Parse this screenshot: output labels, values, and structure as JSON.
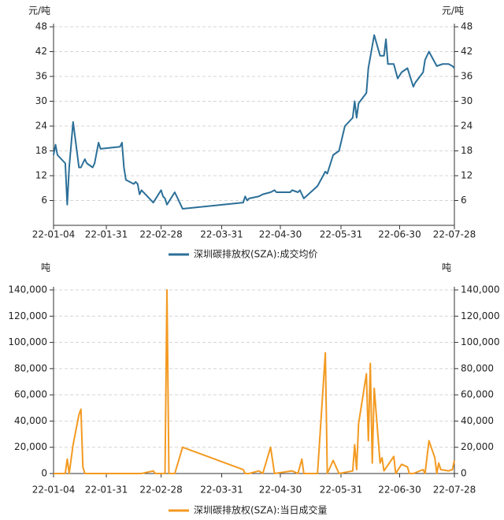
{
  "chart_data": [
    {
      "type": "line",
      "y_label": "元/吨",
      "xlim": [
        "22-01-04",
        "22-07-28"
      ],
      "xticks": [
        "22-01-04",
        "22-01-31",
        "22-02-28",
        "22-03-31",
        "22-04-30",
        "22-05-31",
        "22-06-30",
        "22-07-28"
      ],
      "ylim": [
        0,
        48
      ],
      "yticks": [
        6,
        12,
        18,
        24,
        30,
        36,
        42,
        48
      ],
      "grid": true,
      "x": [
        "22-01-04",
        "22-01-05",
        "22-01-06",
        "22-01-10",
        "22-01-11",
        "22-01-12",
        "22-01-14",
        "22-01-17",
        "22-01-18",
        "22-01-20",
        "22-01-21",
        "22-01-24",
        "22-01-25",
        "22-01-27",
        "22-01-28",
        "22-02-07",
        "22-02-08",
        "22-02-09",
        "22-02-10",
        "22-02-14",
        "22-02-15",
        "22-02-16",
        "22-02-17",
        "22-02-18",
        "22-02-24",
        "22-02-28",
        "22-03-01",
        "22-03-02",
        "22-03-03",
        "22-03-07",
        "22-03-11",
        "22-04-11",
        "22-04-12",
        "22-04-13",
        "22-04-14",
        "22-04-19",
        "22-04-21",
        "22-04-25",
        "22-04-27",
        "22-04-28",
        "22-05-05",
        "22-05-06",
        "22-05-09",
        "22-05-10",
        "22-05-11",
        "22-05-12",
        "22-05-19",
        "22-05-23",
        "22-05-24",
        "22-05-25",
        "22-05-27",
        "22-05-30",
        "22-06-02",
        "22-06-06",
        "22-06-07",
        "22-06-08",
        "22-06-09",
        "22-06-13",
        "22-06-14",
        "22-06-17",
        "22-06-20",
        "22-06-22",
        "22-06-23",
        "22-06-24",
        "22-06-27",
        "22-06-29",
        "22-07-01",
        "22-07-04",
        "22-07-05",
        "22-07-07",
        "22-07-08",
        "22-07-12",
        "22-07-13",
        "22-07-15",
        "22-07-19",
        "22-07-22",
        "22-07-25",
        "22-07-27",
        "22-07-28"
      ],
      "series": [
        {
          "name": "深圳碳排放权(SZA):成交均价",
          "color": "#2b6f98",
          "values": [
            17,
            19.5,
            17,
            15,
            5,
            14,
            25,
            14,
            14,
            16,
            15,
            14,
            15,
            20,
            18.5,
            19,
            20,
            14,
            11,
            10,
            10.5,
            10,
            7.5,
            8.5,
            5.5,
            8.5,
            7,
            6.5,
            5,
            8,
            4,
            5.5,
            7,
            6,
            6.5,
            7,
            7.5,
            8,
            8.5,
            8,
            8,
            8.5,
            8,
            8.5,
            7.5,
            6.5,
            9.5,
            13,
            12.5,
            14,
            17,
            18,
            24,
            26,
            30,
            26,
            29.5,
            32,
            38,
            46,
            41,
            41,
            45,
            39,
            39,
            35.5,
            37,
            38,
            36.5,
            33.5,
            34.5,
            37,
            40,
            42,
            38.5,
            39,
            39,
            38.5,
            38
          ]
        }
      ]
    },
    {
      "type": "line",
      "y_label": "吨",
      "xlim": [
        "22-01-04",
        "22-07-28"
      ],
      "xticks": [
        "22-01-04",
        "22-01-31",
        "22-02-28",
        "22-03-31",
        "22-04-30",
        "22-05-31",
        "22-06-30",
        "22-07-28"
      ],
      "ylim": [
        0,
        140000
      ],
      "yticks": [
        0,
        {
          "value": 20000,
          "label": "20,000"
        },
        {
          "value": 40000,
          "label": "40,000"
        },
        {
          "value": 60000,
          "label": "60,000"
        },
        {
          "value": 80000,
          "label": "80,000"
        },
        {
          "value": 100000,
          "label": "100,000"
        },
        {
          "value": 120000,
          "label": "120,000"
        },
        {
          "value": 140000,
          "label": "140,000"
        }
      ],
      "grid": true,
      "x": [
        "22-01-04",
        "22-01-10",
        "22-01-11",
        "22-01-12",
        "22-01-14",
        "22-01-17",
        "22-01-18",
        "22-01-19",
        "22-01-20",
        "22-01-28",
        "22-02-07",
        "22-02-18",
        "22-02-24",
        "22-02-25",
        "22-03-02",
        "22-03-03",
        "22-03-04",
        "22-03-07",
        "22-03-11",
        "22-04-11",
        "22-04-12",
        "22-04-14",
        "22-04-19",
        "22-04-21",
        "22-04-25",
        "22-04-27",
        "22-05-06",
        "22-05-09",
        "22-05-11",
        "22-05-12",
        "22-05-19",
        "22-05-23",
        "22-05-24",
        "22-05-27",
        "22-05-30",
        "22-06-06",
        "22-06-07",
        "22-06-08",
        "22-06-09",
        "22-06-13",
        "22-06-14",
        "22-06-15",
        "22-06-16",
        "22-06-17",
        "22-06-20",
        "22-06-21",
        "22-06-22",
        "22-06-27",
        "22-06-28",
        "22-07-01",
        "22-07-04",
        "22-07-05",
        "22-07-07",
        "22-07-12",
        "22-07-13",
        "22-07-15",
        "22-07-18",
        "22-07-19",
        "22-07-20",
        "22-07-21",
        "22-07-25",
        "22-07-27",
        "22-07-28"
      ],
      "series": [
        {
          "name": "深圳碳排放权(SZA):当日成交量",
          "color": "#f39a21",
          "values": [
            0,
            0,
            11000,
            0,
            22000,
            45000,
            49000,
            5000,
            0,
            0,
            0,
            0,
            2000,
            0,
            0,
            140000,
            0,
            0,
            20000,
            3000,
            0,
            0,
            2000,
            0,
            20000,
            0,
            2000,
            0,
            11000,
            0,
            0,
            92000,
            0,
            10000,
            0,
            2000,
            22000,
            3000,
            38000,
            76000,
            25000,
            84000,
            8000,
            65000,
            8000,
            12000,
            2000,
            13000,
            0,
            7000,
            5000,
            0,
            0,
            3000,
            0,
            25000,
            12000,
            0,
            8000,
            3000,
            2000,
            3000,
            10000
          ]
        }
      ]
    }
  ]
}
